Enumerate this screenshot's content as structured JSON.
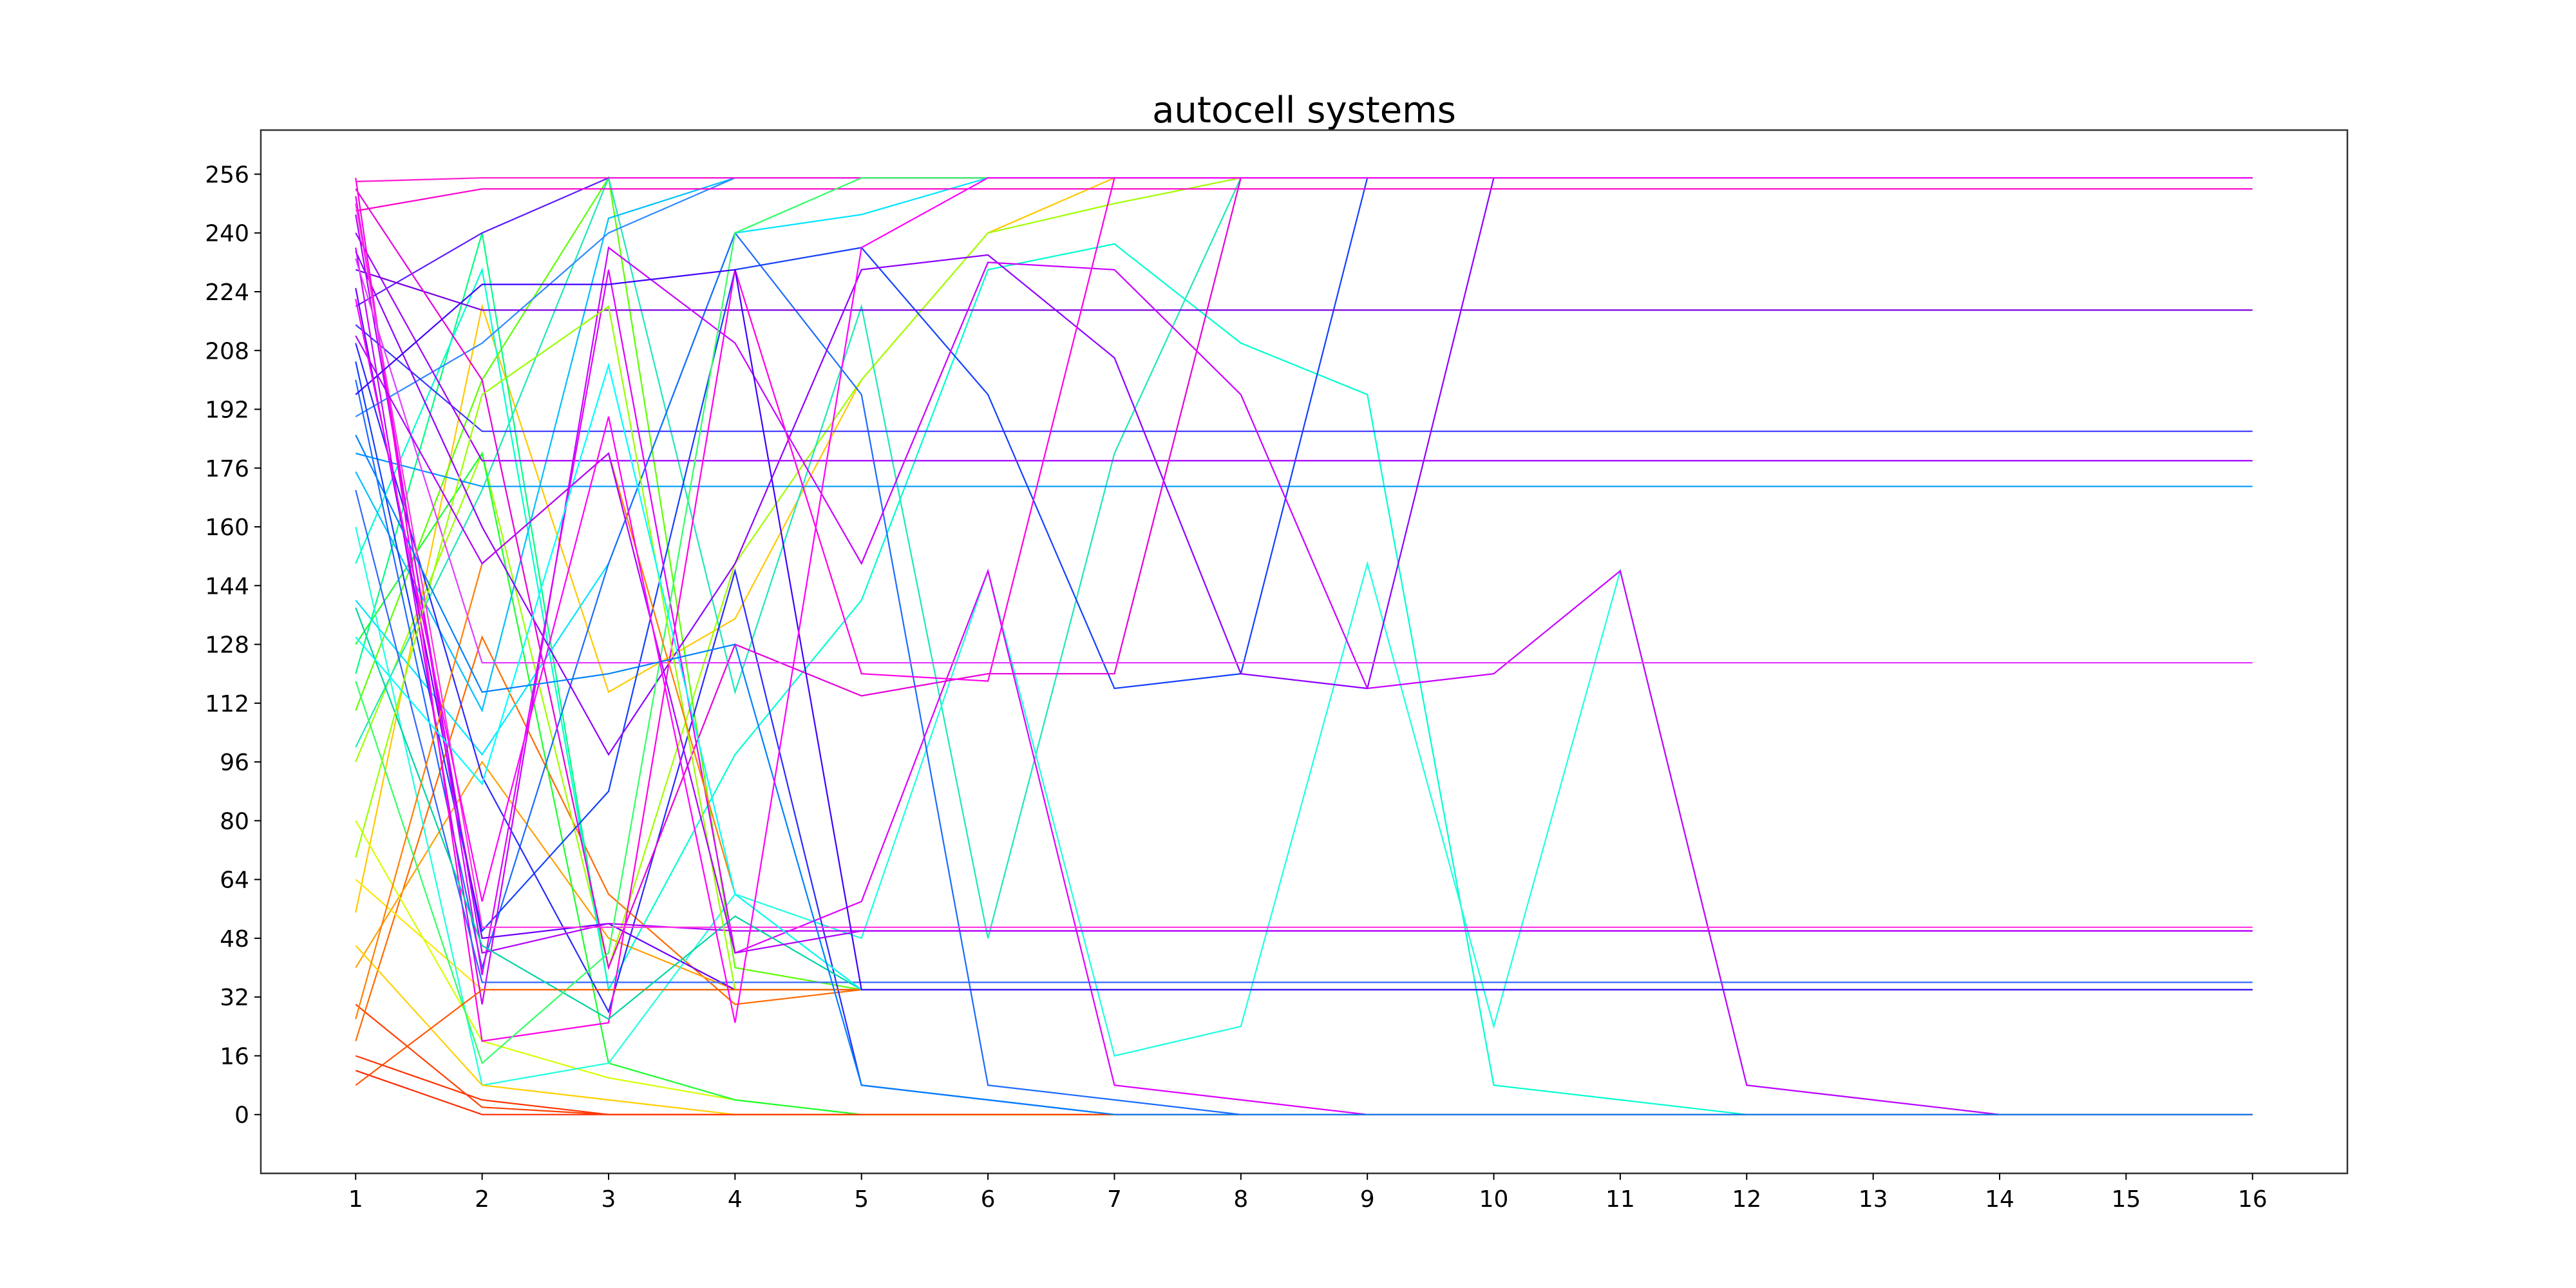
{
  "chart_data": {
    "type": "line",
    "title": "autocell systems",
    "xlabel": "",
    "ylabel": "",
    "x": [
      1,
      2,
      3,
      4,
      5,
      6,
      7,
      8,
      9,
      10,
      11,
      12,
      13,
      14,
      15,
      16
    ],
    "xlim": [
      0.25,
      16.75
    ],
    "ylim": [
      -16,
      268
    ],
    "xticks": [
      "1",
      "2",
      "3",
      "4",
      "5",
      "6",
      "7",
      "8",
      "9",
      "10",
      "11",
      "12",
      "13",
      "14",
      "15",
      "16"
    ],
    "yticks": [
      "0",
      "16",
      "32",
      "48",
      "64",
      "80",
      "96",
      "112",
      "128",
      "144",
      "160",
      "176",
      "192",
      "208",
      "224",
      "240",
      "256"
    ],
    "grid": false,
    "legend": "none",
    "colormap": "hsv",
    "series": [
      {
        "color": "#ff2a00",
        "values": [
          12,
          0,
          0,
          0,
          0,
          0,
          0,
          0,
          0,
          0,
          0,
          0,
          0,
          0,
          0,
          0
        ]
      },
      {
        "color": "#ff4000",
        "values": [
          30,
          2,
          0,
          0,
          0,
          0,
          0,
          0,
          0,
          0,
          0,
          0,
          0,
          0,
          0,
          0
        ]
      },
      {
        "color": "#ff6a00",
        "values": [
          20,
          130,
          60,
          30,
          34,
          34,
          34,
          34,
          34,
          34,
          34,
          34,
          34,
          34,
          34,
          34
        ]
      },
      {
        "color": "#ff9f00",
        "values": [
          40,
          96,
          48,
          34,
          34,
          34,
          34,
          34,
          34,
          34,
          34,
          34,
          34,
          34,
          34,
          34
        ]
      },
      {
        "color": "#ffc800",
        "values": [
          55,
          220,
          115,
          135,
          200,
          240,
          255,
          255,
          255,
          255,
          255,
          255,
          255,
          255,
          255,
          255
        ]
      },
      {
        "color": "#ffe600",
        "values": [
          64,
          34,
          34,
          34,
          34,
          34,
          34,
          34,
          34,
          34,
          34,
          34,
          34,
          34,
          34,
          34
        ]
      },
      {
        "color": "#d6ff00",
        "values": [
          80,
          20,
          10,
          4,
          0,
          0,
          0,
          0,
          0,
          0,
          0,
          0,
          0,
          0,
          0,
          0
        ]
      },
      {
        "color": "#a0ff00",
        "values": [
          96,
          180,
          40,
          150,
          200,
          240,
          248,
          255,
          255,
          255,
          255,
          255,
          255,
          255,
          255,
          255
        ]
      },
      {
        "color": "#5cff00",
        "values": [
          110,
          200,
          255,
          40,
          34,
          34,
          34,
          34,
          34,
          34,
          34,
          34,
          34,
          34,
          34,
          34
        ]
      },
      {
        "color": "#1bff2e",
        "values": [
          128,
          180,
          14,
          4,
          0,
          0,
          0,
          0,
          0,
          0,
          0,
          0,
          0,
          0,
          0,
          0
        ]
      },
      {
        "color": "#00ff80",
        "values": [
          120,
          240,
          34,
          34,
          34,
          34,
          34,
          34,
          34,
          34,
          34,
          34,
          34,
          34,
          34,
          34
        ]
      },
      {
        "color": "#1de9b6",
        "values": [
          100,
          170,
          255,
          115,
          220,
          48,
          180,
          255,
          255,
          255,
          255,
          255,
          255,
          255,
          255,
          255
        ]
      },
      {
        "color": "#00ffd0",
        "values": [
          150,
          230,
          34,
          98,
          140,
          230,
          237,
          210,
          196,
          8,
          4,
          0,
          0,
          0,
          0,
          0
        ]
      },
      {
        "color": "#20ffe0",
        "values": [
          160,
          8,
          14,
          60,
          48,
          148,
          16,
          24,
          150,
          24,
          148,
          8,
          4,
          0,
          0,
          0
        ]
      },
      {
        "color": "#00e5ff",
        "values": [
          140,
          98,
          150,
          240,
          245,
          255,
          255,
          255,
          255,
          255,
          255,
          255,
          255,
          255,
          255,
          255
        ]
      },
      {
        "color": "#00bfff",
        "values": [
          175,
          110,
          244,
          255,
          255,
          255,
          255,
          255,
          255,
          255,
          255,
          255,
          255,
          255,
          255,
          255
        ]
      },
      {
        "color": "#009aff",
        "values": [
          180,
          171,
          171,
          171,
          171,
          171,
          171,
          171,
          171,
          171,
          171,
          171,
          171,
          171,
          171,
          171
        ]
      },
      {
        "color": "#2f88ff",
        "values": [
          190,
          210,
          240,
          255,
          255,
          255,
          255,
          255,
          255,
          255,
          255,
          255,
          255,
          255,
          255,
          255
        ]
      },
      {
        "color": "#1b6bff",
        "values": [
          200,
          40,
          150,
          240,
          196,
          8,
          4,
          0,
          0,
          0,
          0,
          0,
          0,
          0,
          0,
          0
        ]
      },
      {
        "color": "#1340ff",
        "values": [
          205,
          50,
          88,
          230,
          236,
          196,
          116,
          120,
          255,
          255,
          255,
          255,
          255,
          255,
          255,
          255
        ]
      },
      {
        "color": "#2a2aff",
        "values": [
          210,
          92,
          28,
          148,
          8,
          4,
          0,
          0,
          0,
          0,
          0,
          0,
          0,
          0,
          0,
          0
        ]
      },
      {
        "color": "#3a35ff",
        "values": [
          215,
          186,
          186,
          186,
          186,
          186,
          186,
          186,
          186,
          186,
          186,
          186,
          186,
          186,
          186,
          186
        ]
      },
      {
        "color": "#5c1bff",
        "values": [
          220,
          240,
          255,
          255,
          255,
          255,
          255,
          255,
          255,
          255,
          255,
          255,
          255,
          255,
          255,
          255
        ]
      },
      {
        "color": "#6a00ff",
        "values": [
          225,
          48,
          52,
          34,
          34,
          34,
          34,
          34,
          34,
          34,
          34,
          34,
          34,
          34,
          34,
          34
        ]
      },
      {
        "color": "#7a00e0",
        "values": [
          230,
          219,
          219,
          219,
          219,
          219,
          219,
          219,
          219,
          219,
          219,
          219,
          219,
          219,
          219,
          219
        ]
      },
      {
        "color": "#8f00ff",
        "values": [
          235,
          160,
          98,
          150,
          230,
          234,
          206,
          120,
          116,
          255,
          255,
          255,
          255,
          255,
          255,
          255
        ]
      },
      {
        "color": "#a000ff",
        "values": [
          240,
          178,
          178,
          178,
          178,
          178,
          178,
          178,
          178,
          178,
          178,
          178,
          178,
          178,
          178,
          178
        ]
      },
      {
        "color": "#b400ff",
        "values": [
          245,
          44,
          52,
          50,
          50,
          50,
          50,
          50,
          50,
          50,
          50,
          50,
          50,
          50,
          50,
          50
        ]
      },
      {
        "color": "#c800ff",
        "values": [
          236,
          30,
          236,
          210,
          150,
          232,
          230,
          196,
          116,
          120,
          148,
          8,
          4,
          0,
          0,
          0
        ]
      },
      {
        "color": "#dd00ff",
        "values": [
          250,
          38,
          230,
          44,
          58,
          148,
          8,
          4,
          0,
          0,
          0,
          0,
          0,
          0,
          0,
          0
        ]
      },
      {
        "color": "#e600d8",
        "values": [
          252,
          200,
          40,
          128,
          114,
          120,
          120,
          255,
          255,
          255,
          255,
          255,
          255,
          255,
          255,
          255
        ]
      },
      {
        "color": "#ff00e6",
        "values": [
          255,
          20,
          25,
          230,
          120,
          118,
          255,
          255,
          255,
          255,
          255,
          255,
          255,
          255,
          255,
          255
        ]
      },
      {
        "color": "#ff00cc",
        "values": [
          246,
          252,
          252,
          252,
          252,
          252,
          252,
          252,
          252,
          252,
          252,
          252,
          252,
          252,
          252,
          252
        ]
      },
      {
        "color": "#ff1ad0",
        "values": [
          254,
          255,
          255,
          255,
          255,
          255,
          255,
          255,
          255,
          255,
          255,
          255,
          255,
          255,
          255,
          255
        ]
      },
      {
        "color": "#ff33e0",
        "values": [
          248,
          51,
          51,
          51,
          51,
          51,
          51,
          51,
          51,
          51,
          51,
          51,
          51,
          51,
          51,
          51
        ]
      },
      {
        "color": "#e040ff",
        "values": [
          233,
          123,
          123,
          123,
          123,
          123,
          123,
          123,
          123,
          123,
          123,
          123,
          123,
          123,
          123,
          123
        ]
      },
      {
        "color": "#3366ff",
        "values": [
          170,
          36,
          36,
          36,
          36,
          36,
          36,
          36,
          36,
          36,
          36,
          36,
          36,
          36,
          36,
          36
        ]
      },
      {
        "color": "#00d4a0",
        "values": [
          138,
          46,
          26,
          54,
          34,
          34,
          34,
          34,
          34,
          34,
          34,
          34,
          34,
          34,
          34,
          34
        ]
      },
      {
        "color": "#33ff66",
        "values": [
          118,
          14,
          44,
          240,
          255,
          255,
          255,
          255,
          255,
          255,
          255,
          255,
          255,
          255,
          255,
          255
        ]
      },
      {
        "color": "#99ff00",
        "values": [
          70,
          196,
          220,
          34,
          34,
          34,
          34,
          34,
          34,
          34,
          34,
          34,
          34,
          34,
          34,
          34
        ]
      },
      {
        "color": "#ffd000",
        "values": [
          46,
          8,
          4,
          0,
          0,
          0,
          0,
          0,
          0,
          0,
          0,
          0,
          0,
          0,
          0,
          0
        ]
      },
      {
        "color": "#ff5500",
        "values": [
          8,
          34,
          34,
          34,
          34,
          34,
          34,
          34,
          34,
          34,
          34,
          34,
          34,
          34,
          34,
          34
        ]
      },
      {
        "color": "#ff3300",
        "values": [
          16,
          4,
          0,
          0,
          0,
          0,
          0,
          0,
          0,
          0,
          0,
          0,
          0,
          0,
          0,
          0
        ]
      },
      {
        "color": "#ff7f00",
        "values": [
          26,
          150,
          180,
          60,
          34,
          34,
          34,
          34,
          34,
          34,
          34,
          34,
          34,
          34,
          34,
          34
        ]
      },
      {
        "color": "#00ffff",
        "values": [
          130,
          90,
          204,
          60,
          34,
          34,
          34,
          34,
          34,
          34,
          34,
          34,
          34,
          34,
          34,
          34
        ]
      },
      {
        "color": "#0080ff",
        "values": [
          185,
          115,
          120,
          128,
          8,
          4,
          0,
          0,
          0,
          0,
          0,
          0,
          0,
          0,
          0,
          0
        ]
      },
      {
        "color": "#4000ff",
        "values": [
          196,
          226,
          226,
          230,
          34,
          34,
          34,
          34,
          34,
          34,
          34,
          34,
          34,
          34,
          34,
          34
        ]
      },
      {
        "color": "#b000ff",
        "values": [
          212,
          150,
          180,
          44,
          50,
          50,
          50,
          50,
          50,
          50,
          50,
          50,
          50,
          50,
          50,
          50
        ]
      },
      {
        "color": "#ff00ff",
        "values": [
          222,
          58,
          190,
          25,
          236,
          255,
          255,
          255,
          255,
          255,
          255,
          255,
          255,
          255,
          255,
          255
        ]
      }
    ]
  }
}
